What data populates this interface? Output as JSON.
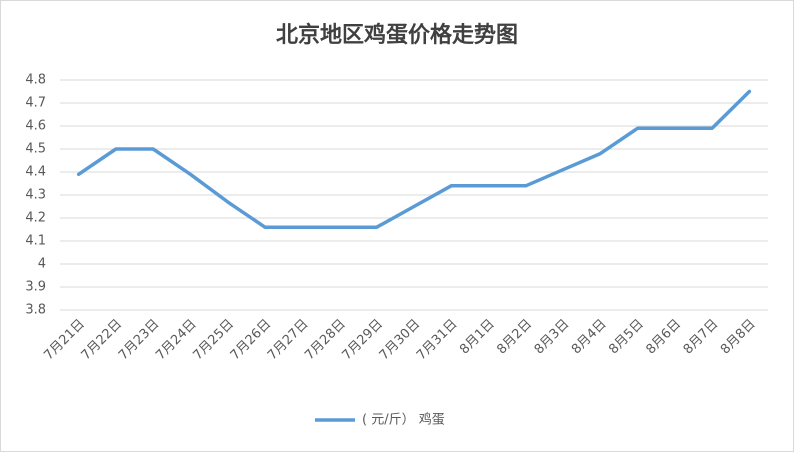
{
  "chart_data": {
    "type": "line",
    "title": "北京地区鸡蛋价格走势图",
    "categories": [
      "7月21日",
      "7月22日",
      "7月23日",
      "7月24日",
      "7月25日",
      "7月26日",
      "7月27日",
      "7月28日",
      "7月29日",
      "7月30日",
      "7月31日",
      "8月1日",
      "8月2日",
      "8月3日",
      "8月4日",
      "8月5日",
      "8月6日",
      "8月7日",
      "8月8日"
    ],
    "series": [
      {
        "name": "( 元/斤） 鸡蛋",
        "color": "#5b9bd5",
        "values": [
          4.39,
          4.5,
          4.5,
          4.39,
          4.27,
          4.16,
          4.16,
          4.16,
          4.16,
          4.25,
          4.34,
          4.34,
          4.34,
          4.41,
          4.48,
          4.59,
          4.59,
          4.59,
          4.75
        ]
      }
    ],
    "ylim": [
      3.8,
      4.8
    ],
    "yticks": [
      3.8,
      3.9,
      4,
      4.1,
      4.2,
      4.3,
      4.4,
      4.5,
      4.6,
      4.7,
      4.8
    ],
    "grid": true,
    "legend": "bottom"
  }
}
